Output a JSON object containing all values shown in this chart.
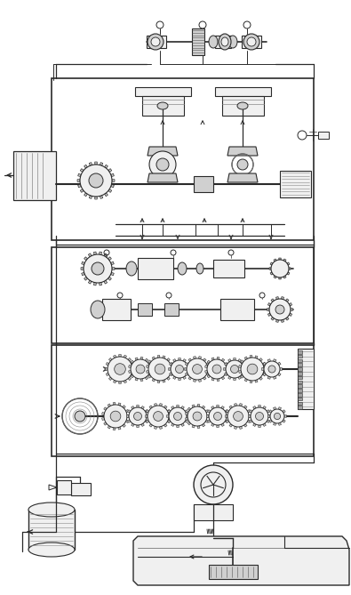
{
  "bg_color": "#ffffff",
  "line_color": "#2a2a2a",
  "gray1": "#b0b0b0",
  "gray2": "#888888",
  "gray3": "#555555",
  "fill_light": "#f0f0f0",
  "fill_mid": "#d0d0d0",
  "fill_dark": "#a0a0a0",
  "figsize": [
    3.95,
    6.69
  ],
  "dpi": 100
}
